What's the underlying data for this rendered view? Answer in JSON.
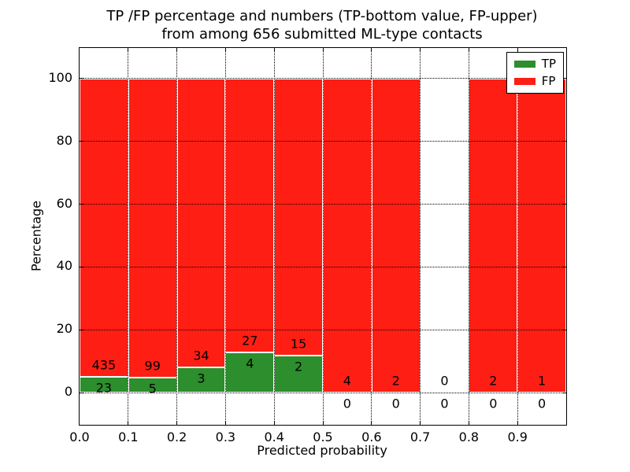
{
  "chart_data": {
    "type": "bar",
    "stacked": true,
    "title_lines": [
      "TP /FP percentage and numbers (TP-bottom value, FP-upper)",
      "from among 656 submitted ML-type contacts"
    ],
    "title": "TP /FP percentage and numbers (TP-bottom value, FP-upper) from among 656 submitted ML-type contacts",
    "total_contacts": 656,
    "xlabel": "Predicted probability",
    "ylabel": "Percentage",
    "x_tick_labels": [
      "0.0",
      "0.1",
      "0.2",
      "0.3",
      "0.4",
      "0.5",
      "0.6",
      "0.7",
      "0.8",
      "0.9"
    ],
    "y_ticks": [
      0,
      20,
      40,
      60,
      80,
      100
    ],
    "xlim": [
      0.0,
      1.0
    ],
    "ylim": [
      -10.25,
      109.75
    ],
    "grid": "dotted",
    "bar_total_percent": 100,
    "series": [
      {
        "name": "TP",
        "color": "#2c8e2c"
      },
      {
        "name": "FP",
        "color": "#ff1e14"
      }
    ],
    "bins": [
      {
        "bin": "0.0-0.1",
        "tp": 23,
        "fp": 435
      },
      {
        "bin": "0.1-0.2",
        "tp": 5,
        "fp": 99
      },
      {
        "bin": "0.2-0.3",
        "tp": 3,
        "fp": 34
      },
      {
        "bin": "0.3-0.4",
        "tp": 4,
        "fp": 27
      },
      {
        "bin": "0.4-0.5",
        "tp": 2,
        "fp": 15
      },
      {
        "bin": "0.5-0.6",
        "tp": 0,
        "fp": 4
      },
      {
        "bin": "0.6-0.7",
        "tp": 0,
        "fp": 2
      },
      {
        "bin": "0.7-0.8",
        "tp": 0,
        "fp": 0
      },
      {
        "bin": "0.8-0.9",
        "tp": 0,
        "fp": 2
      },
      {
        "bin": "0.9-1.0",
        "tp": 0,
        "fp": 1
      }
    ],
    "tp_percent_by_bin": [
      5.0,
      4.8,
      8.1,
      12.9,
      11.8,
      0,
      0,
      null,
      0,
      0
    ],
    "legend": {
      "position": "upper right",
      "entries": [
        "TP",
        "FP"
      ]
    }
  }
}
